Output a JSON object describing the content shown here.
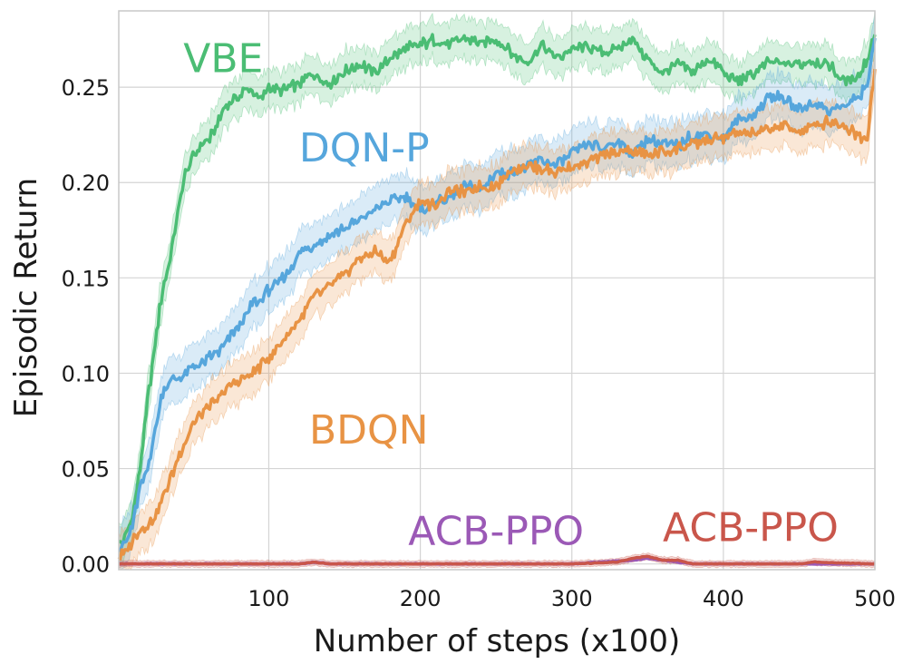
{
  "chart_data": {
    "type": "line",
    "title": "",
    "xlabel": "Number of steps (x100)",
    "ylabel": "Episodic Return",
    "xlim": [
      1,
      500
    ],
    "ylim": [
      -0.003,
      0.29
    ],
    "xticks": [
      100,
      200,
      300,
      400,
      500
    ],
    "yticks": [
      0.0,
      0.05,
      0.1,
      0.15,
      0.2,
      0.25
    ],
    "ytick_labels": [
      "0.00",
      "0.05",
      "0.10",
      "0.15",
      "0.20",
      "0.25"
    ],
    "grid": true,
    "legend": "inline labels",
    "series": [
      {
        "name": "VBE",
        "label": "VBE",
        "color": "#4bbd74",
        "label_anchor": [
          70,
          0.258
        ],
        "x": [
          1,
          5,
          10,
          15,
          20,
          25,
          30,
          35,
          40,
          45,
          50,
          55,
          60,
          65,
          70,
          75,
          80,
          85,
          90,
          95,
          100,
          110,
          120,
          130,
          140,
          150,
          160,
          170,
          180,
          190,
          200,
          210,
          220,
          230,
          240,
          250,
          260,
          270,
          280,
          290,
          300,
          310,
          320,
          330,
          340,
          350,
          360,
          370,
          380,
          390,
          400,
          410,
          420,
          430,
          440,
          450,
          460,
          470,
          480,
          490,
          495,
          500
        ],
        "y": [
          0.01,
          0.013,
          0.025,
          0.05,
          0.085,
          0.115,
          0.145,
          0.16,
          0.185,
          0.205,
          0.213,
          0.22,
          0.222,
          0.228,
          0.238,
          0.243,
          0.245,
          0.249,
          0.247,
          0.243,
          0.25,
          0.248,
          0.252,
          0.257,
          0.252,
          0.258,
          0.262,
          0.258,
          0.265,
          0.27,
          0.272,
          0.275,
          0.273,
          0.276,
          0.273,
          0.275,
          0.268,
          0.262,
          0.272,
          0.265,
          0.27,
          0.271,
          0.268,
          0.27,
          0.276,
          0.264,
          0.258,
          0.262,
          0.258,
          0.265,
          0.258,
          0.253,
          0.257,
          0.263,
          0.262,
          0.262,
          0.264,
          0.262,
          0.253,
          0.257,
          0.265,
          0.279
        ],
        "band": 0.012
      },
      {
        "name": "DQN-P",
        "label": "DQN-P",
        "color": "#56a6dc",
        "label_anchor": [
          163,
          0.211
        ],
        "x": [
          1,
          5,
          10,
          15,
          20,
          25,
          30,
          35,
          40,
          45,
          50,
          55,
          60,
          65,
          70,
          75,
          80,
          85,
          90,
          95,
          100,
          110,
          120,
          130,
          140,
          150,
          160,
          170,
          180,
          190,
          200,
          210,
          220,
          230,
          240,
          250,
          260,
          270,
          280,
          290,
          300,
          310,
          320,
          330,
          340,
          350,
          360,
          370,
          380,
          390,
          400,
          410,
          420,
          430,
          440,
          450,
          460,
          470,
          480,
          490,
          495,
          500
        ],
        "y": [
          0.008,
          0.01,
          0.02,
          0.04,
          0.05,
          0.07,
          0.09,
          0.096,
          0.097,
          0.1,
          0.103,
          0.105,
          0.108,
          0.11,
          0.113,
          0.12,
          0.125,
          0.13,
          0.137,
          0.138,
          0.144,
          0.15,
          0.162,
          0.168,
          0.172,
          0.176,
          0.18,
          0.186,
          0.19,
          0.193,
          0.185,
          0.19,
          0.192,
          0.198,
          0.196,
          0.205,
          0.205,
          0.208,
          0.212,
          0.209,
          0.215,
          0.22,
          0.218,
          0.222,
          0.215,
          0.222,
          0.22,
          0.219,
          0.225,
          0.225,
          0.223,
          0.233,
          0.235,
          0.245,
          0.244,
          0.238,
          0.242,
          0.238,
          0.24,
          0.245,
          0.252,
          0.278
        ],
        "band": 0.014
      },
      {
        "name": "BDQN",
        "label": "BDQN",
        "color": "#e89344",
        "label_anchor": [
          166,
          0.063
        ],
        "x": [
          1,
          5,
          10,
          15,
          20,
          25,
          30,
          35,
          40,
          45,
          50,
          55,
          60,
          65,
          70,
          75,
          80,
          85,
          90,
          95,
          100,
          110,
          120,
          130,
          140,
          150,
          160,
          170,
          180,
          190,
          200,
          210,
          220,
          230,
          240,
          250,
          260,
          270,
          280,
          290,
          300,
          310,
          320,
          330,
          340,
          350,
          360,
          370,
          380,
          390,
          400,
          410,
          420,
          430,
          440,
          450,
          460,
          470,
          480,
          490,
          495,
          500
        ],
        "y": [
          0.004,
          0.006,
          0.012,
          0.018,
          0.02,
          0.025,
          0.035,
          0.045,
          0.055,
          0.065,
          0.074,
          0.078,
          0.082,
          0.085,
          0.09,
          0.094,
          0.096,
          0.098,
          0.1,
          0.104,
          0.108,
          0.118,
          0.128,
          0.14,
          0.145,
          0.152,
          0.16,
          0.164,
          0.158,
          0.178,
          0.19,
          0.188,
          0.196,
          0.195,
          0.198,
          0.198,
          0.207,
          0.209,
          0.207,
          0.205,
          0.208,
          0.211,
          0.214,
          0.216,
          0.217,
          0.214,
          0.216,
          0.218,
          0.22,
          0.222,
          0.224,
          0.226,
          0.225,
          0.228,
          0.23,
          0.227,
          0.23,
          0.232,
          0.23,
          0.224,
          0.224,
          0.262
        ],
        "band": 0.013
      },
      {
        "name": "ACB-PPO (purple)",
        "label": "ACB-PPO",
        "color": "#9b59b6",
        "label_anchor": [
          250,
          0.01
        ],
        "x": [
          1,
          50,
          100,
          120,
          130,
          140,
          150,
          200,
          250,
          300,
          340,
          350,
          360,
          370,
          380,
          400,
          450,
          500
        ],
        "y": [
          0.0,
          0.0,
          0.0,
          0.0,
          0.001,
          0.0,
          0.0,
          0.0,
          0.0,
          0.0,
          0.002,
          0.003,
          0.002,
          0.001,
          0.0,
          0.0,
          0.0,
          0.0
        ],
        "band": 0.001
      },
      {
        "name": "ACB-PPO (red)",
        "label": "ACB-PPO",
        "color": "#c9564b",
        "label_anchor": [
          418,
          0.012
        ],
        "x": [
          1,
          50,
          100,
          120,
          130,
          140,
          150,
          200,
          250,
          300,
          330,
          340,
          350,
          360,
          370,
          380,
          400,
          450,
          460,
          500
        ],
        "y": [
          0.0,
          0.0,
          0.0,
          0.0,
          0.001,
          0.0,
          0.0,
          0.0,
          0.0,
          0.0,
          0.001,
          0.003,
          0.004,
          0.002,
          0.002,
          0.0,
          0.0,
          0.0,
          0.001,
          0.0
        ],
        "band": 0.002
      }
    ]
  }
}
